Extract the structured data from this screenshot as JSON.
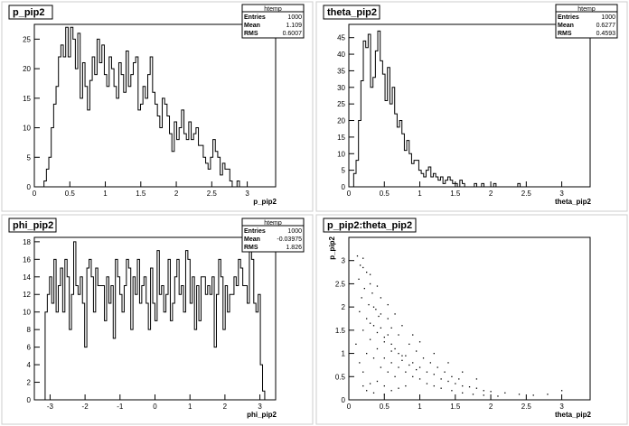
{
  "chart_data": [
    {
      "type": "histogram",
      "title": "p_pip2",
      "xlabel": "p_pip2",
      "ylabel": "",
      "xlim": [
        0,
        3.4
      ],
      "ylim": [
        0,
        27.5
      ],
      "xticks": [
        0,
        0.5,
        1,
        1.5,
        2,
        2.5,
        3
      ],
      "yticks": [
        0,
        5,
        10,
        15,
        20,
        25
      ],
      "stats": {
        "name": "htemp",
        "entries_label": "Entries",
        "entries": "1000",
        "mean_label": "Mean",
        "mean": "1.109",
        "rms_label": "RMS",
        "rms": "0.6007"
      },
      "bin_start": 0.0,
      "bin_width": 0.034,
      "values": [
        0,
        0,
        0,
        0,
        1,
        3,
        5,
        10,
        14,
        17,
        22,
        24,
        22,
        27,
        22,
        27,
        25,
        20,
        26,
        15,
        21,
        17,
        13,
        18,
        22,
        19,
        25,
        21,
        24,
        19,
        17,
        22,
        20,
        17,
        15,
        21,
        19,
        16,
        23,
        17,
        19,
        21,
        22,
        13,
        14,
        17,
        15,
        19,
        22,
        16,
        14,
        12,
        10,
        15,
        14,
        12,
        9,
        6,
        11,
        8,
        10,
        13,
        9,
        8,
        11,
        8,
        9,
        10,
        7,
        7,
        5,
        4,
        3,
        5,
        8,
        6,
        5,
        2,
        4,
        3,
        3,
        1,
        0,
        0,
        1,
        0,
        0,
        0,
        0,
        0,
        0,
        0,
        0,
        0,
        0,
        0,
        0,
        0,
        0,
        0
      ]
    },
    {
      "type": "histogram",
      "title": "theta_pip2",
      "xlabel": "theta_pip2",
      "ylabel": "",
      "xlim": [
        0,
        3.4
      ],
      "ylim": [
        0,
        49
      ],
      "xticks": [
        0,
        0.5,
        1,
        1.5,
        2,
        2.5,
        3
      ],
      "yticks": [
        0,
        5,
        10,
        15,
        20,
        25,
        30,
        35,
        40,
        45
      ],
      "stats": {
        "name": "htemp",
        "entries_label": "Entries",
        "entries": "1000",
        "mean_label": "Mean",
        "mean": "0.6277",
        "rms_label": "RMS",
        "rms": "0.4593"
      },
      "bin_start": 0.0,
      "bin_width": 0.034,
      "values": [
        0,
        0,
        4,
        8,
        20,
        32,
        44,
        42,
        46,
        30,
        33,
        41,
        47,
        38,
        34,
        26,
        36,
        25,
        30,
        22,
        18,
        20,
        16,
        11,
        14,
        10,
        7,
        8,
        8,
        5,
        4,
        3,
        5,
        6,
        3,
        4,
        3,
        2,
        3,
        1,
        2,
        3,
        2,
        1,
        1,
        0,
        2,
        1,
        0,
        0,
        0,
        0,
        1,
        0,
        0,
        1,
        0,
        0,
        0,
        0,
        1,
        0,
        0,
        0,
        0,
        0,
        0,
        0,
        0,
        0,
        1,
        0,
        0,
        0,
        0,
        0,
        0,
        0,
        0,
        0,
        0,
        0,
        0,
        0,
        0,
        0,
        0,
        0,
        0,
        0,
        0,
        0,
        0,
        0,
        0,
        0,
        0,
        0,
        0,
        0
      ]
    },
    {
      "type": "histogram",
      "title": "phi_pip2",
      "xlabel": "phi_pip2",
      "ylabel": "",
      "xlim": [
        -3.45,
        3.45
      ],
      "ylim": [
        0,
        18.5
      ],
      "xticks": [
        -3,
        -2,
        -1,
        0,
        1,
        2,
        3
      ],
      "yticks": [
        0,
        2,
        4,
        6,
        8,
        10,
        12,
        14,
        16,
        18
      ],
      "stats": {
        "name": "htemp",
        "entries_label": "Entries",
        "entries": "1000",
        "mean_label": "Mean",
        "mean": "-0.03975",
        "rms_label": "RMS",
        "rms": "1.826"
      },
      "bin_start": -3.1416,
      "bin_width": 0.0628,
      "values": [
        10,
        12,
        14,
        11,
        16,
        10,
        13,
        15,
        10,
        16,
        14,
        8,
        12,
        18,
        13,
        12,
        14,
        11,
        6,
        15,
        16,
        14,
        10,
        15,
        13,
        13,
        13,
        9,
        14,
        11,
        13,
        7,
        16,
        14,
        12,
        10,
        13,
        16,
        15,
        8,
        14,
        12,
        16,
        11,
        13,
        14,
        11,
        8,
        15,
        11,
        9,
        17,
        12,
        13,
        10,
        12,
        16,
        9,
        11,
        14,
        16,
        12,
        13,
        10,
        17,
        16,
        11,
        14,
        8,
        13,
        9,
        14,
        14,
        12,
        13,
        12,
        14,
        6,
        12,
        16,
        14,
        8,
        13,
        10,
        12,
        12,
        14,
        13,
        16,
        15,
        13,
        13,
        11,
        17,
        16,
        11,
        10,
        12,
        4,
        1
      ]
    },
    {
      "type": "scatter",
      "title": "p_pip2:theta_pip2",
      "xlabel": "theta_pip2",
      "ylabel": "p_pip2",
      "xlim": [
        0,
        3.4
      ],
      "ylim": [
        0,
        3.5
      ],
      "xticks": [
        0,
        0.5,
        1,
        1.5,
        2,
        2.5,
        3
      ],
      "yticks": [
        0,
        0.5,
        1,
        1.5,
        2,
        2.5,
        3
      ],
      "points": [
        [
          0.12,
          3.1
        ],
        [
          0.16,
          2.9
        ],
        [
          0.2,
          3.05
        ],
        [
          0.25,
          2.75
        ],
        [
          0.3,
          2.5
        ],
        [
          0.14,
          2.6
        ],
        [
          0.22,
          2.4
        ],
        [
          0.33,
          2.3
        ],
        [
          0.18,
          2.2
        ],
        [
          0.28,
          2.05
        ],
        [
          0.38,
          1.95
        ],
        [
          0.42,
          1.8
        ],
        [
          0.15,
          1.9
        ],
        [
          0.25,
          1.75
        ],
        [
          0.35,
          1.6
        ],
        [
          0.45,
          1.55
        ],
        [
          0.55,
          1.4
        ],
        [
          0.5,
          1.25
        ],
        [
          0.6,
          1.2
        ],
        [
          0.65,
          1.1
        ],
        [
          0.7,
          1.0
        ],
        [
          0.8,
          0.95
        ],
        [
          0.75,
          0.85
        ],
        [
          0.9,
          0.8
        ],
        [
          1.0,
          0.7
        ],
        [
          1.1,
          0.6
        ],
        [
          1.2,
          0.55
        ],
        [
          1.3,
          0.45
        ],
        [
          1.4,
          0.4
        ],
        [
          1.5,
          0.35
        ],
        [
          1.6,
          0.3
        ],
        [
          1.7,
          0.28
        ],
        [
          1.8,
          0.25
        ],
        [
          1.9,
          0.2
        ],
        [
          2.0,
          0.18
        ],
        [
          2.2,
          0.15
        ],
        [
          2.4,
          0.12
        ],
        [
          2.6,
          0.1
        ],
        [
          2.8,
          0.12
        ],
        [
          3.0,
          0.2
        ],
        [
          0.2,
          1.5
        ],
        [
          0.3,
          1.3
        ],
        [
          0.4,
          1.1
        ],
        [
          0.5,
          0.9
        ],
        [
          0.6,
          0.8
        ],
        [
          0.7,
          0.7
        ],
        [
          0.8,
          0.6
        ],
        [
          0.9,
          0.5
        ],
        [
          1.0,
          0.45
        ],
        [
          0.25,
          1.0
        ],
        [
          0.35,
          0.9
        ],
        [
          0.45,
          0.7
        ],
        [
          0.55,
          0.6
        ],
        [
          0.65,
          0.5
        ],
        [
          0.4,
          0.4
        ],
        [
          0.3,
          0.35
        ],
        [
          0.5,
          0.3
        ],
        [
          0.2,
          0.6
        ],
        [
          0.15,
          0.8
        ],
        [
          0.1,
          1.2
        ],
        [
          0.35,
          2.0
        ],
        [
          0.45,
          1.85
        ],
        [
          0.55,
          1.75
        ],
        [
          0.6,
          1.55
        ],
        [
          0.7,
          1.4
        ],
        [
          0.85,
          1.2
        ],
        [
          0.95,
          1.05
        ],
        [
          1.05,
          0.9
        ],
        [
          1.15,
          0.8
        ],
        [
          1.25,
          0.7
        ],
        [
          1.35,
          0.6
        ],
        [
          1.45,
          0.5
        ],
        [
          1.55,
          0.45
        ],
        [
          0.3,
          1.65
        ],
        [
          0.4,
          1.45
        ],
        [
          0.5,
          1.35
        ],
        [
          0.6,
          1.05
        ],
        [
          0.75,
          0.95
        ],
        [
          0.85,
          0.75
        ],
        [
          0.95,
          0.65
        ],
        [
          0.2,
          0.3
        ],
        [
          0.25,
          0.2
        ],
        [
          0.35,
          0.15
        ],
        [
          0.5,
          0.12
        ],
        [
          0.6,
          0.2
        ],
        [
          0.7,
          0.25
        ],
        [
          0.8,
          0.3
        ],
        [
          1.1,
          0.35
        ],
        [
          1.2,
          0.3
        ],
        [
          1.3,
          0.25
        ],
        [
          1.45,
          0.2
        ],
        [
          1.6,
          0.15
        ],
        [
          1.75,
          0.12
        ],
        [
          1.9,
          0.1
        ],
        [
          2.1,
          0.08
        ],
        [
          0.45,
          2.2
        ],
        [
          0.3,
          2.7
        ],
        [
          0.2,
          2.85
        ],
        [
          0.4,
          2.45
        ],
        [
          0.55,
          2.05
        ],
        [
          0.65,
          1.85
        ],
        [
          0.75,
          1.6
        ],
        [
          0.9,
          1.4
        ],
        [
          1.0,
          1.25
        ],
        [
          1.2,
          1.0
        ],
        [
          1.4,
          0.8
        ],
        [
          1.6,
          0.6
        ],
        [
          1.8,
          0.45
        ]
      ]
    }
  ]
}
